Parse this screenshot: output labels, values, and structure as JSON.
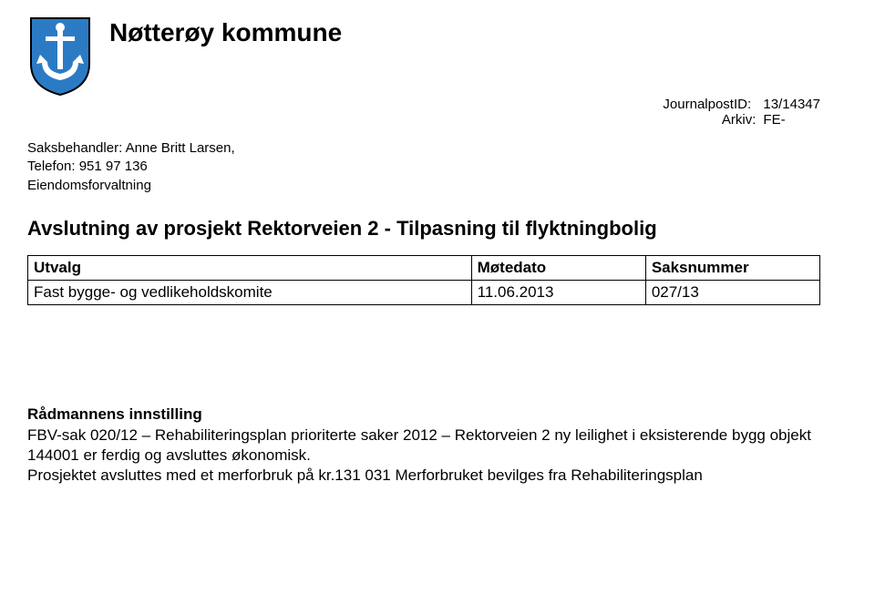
{
  "header": {
    "title": "Nøtterøy kommune",
    "crest": {
      "shield_fill": "#2b7bc4",
      "shield_stroke": "#000000",
      "anchor_fill": "#ffffff"
    }
  },
  "meta": {
    "journal_label": "JournalpostID:",
    "journal_value": "13/14347",
    "arkiv_label": "Arkiv:",
    "arkiv_value": "FE-"
  },
  "saksbehandler": {
    "line1": "Saksbehandler: Anne Britt Larsen,",
    "line2": "Telefon: 951 97 136",
    "line3": "Eiendomsforvaltning"
  },
  "main_heading": "Avslutning av prosjekt Rektorveien 2 - Tilpasning til flyktningbolig",
  "table": {
    "headers": {
      "c1": "Utvalg",
      "c2": "Møtedato",
      "c3": "Saksnummer"
    },
    "row": {
      "c1": "Fast bygge- og vedlikeholdskomite",
      "c2": "11.06.2013",
      "c3": "027/13"
    }
  },
  "section": {
    "heading": "Rådmannens innstilling",
    "body": "FBV-sak 020/12 – Rehabiliteringsplan prioriterte saker 2012 – Rektorveien 2 ny leilighet i eksisterende bygg objekt 144001 er ferdig og avsluttes økonomisk.\nProsjektet avsluttes med et merforbruk på kr.131 031 Merforbruket bevilges fra Rehabiliteringsplan"
  }
}
